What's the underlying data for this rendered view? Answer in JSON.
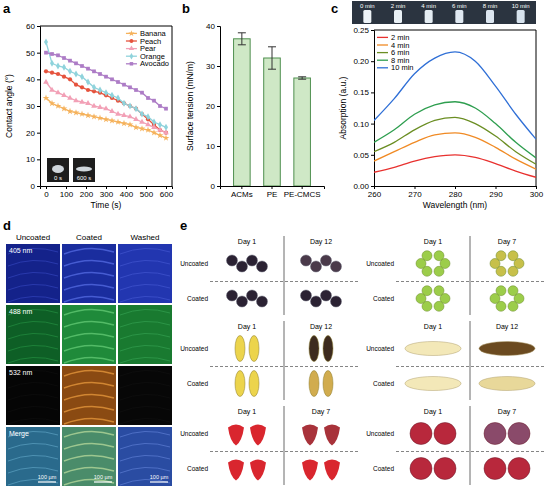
{
  "panel_labels": [
    "a",
    "b",
    "c",
    "d",
    "e"
  ],
  "chart_data": [
    {
      "type": "line",
      "x_label": "Time (s)",
      "y_label": "Contact angle (°)",
      "x": [
        0,
        30,
        60,
        90,
        120,
        150,
        180,
        210,
        240,
        270,
        300,
        330,
        360,
        390,
        420,
        450,
        480,
        510,
        540,
        570,
        600
      ],
      "xlim": [
        -30,
        630
      ],
      "xticks": [
        0,
        100,
        200,
        300,
        400,
        500,
        600
      ],
      "ylim": [
        0,
        60
      ],
      "yticks": [
        0,
        10,
        20,
        30,
        40,
        50,
        60
      ],
      "grid": false,
      "legend": "upper right",
      "annotations": [
        "0 s",
        "600 s"
      ],
      "series": [
        {
          "name": "Banana",
          "color": "#f5b25c",
          "marker": "star",
          "values": [
            33,
            31,
            30,
            29,
            28,
            27.5,
            27,
            26.5,
            26,
            25.5,
            25,
            24.5,
            24,
            23.5,
            23,
            22,
            21.5,
            21,
            20,
            19,
            18
          ]
        },
        {
          "name": "Peach",
          "color": "#e5533d",
          "marker": "circle",
          "values": [
            43,
            42.5,
            42,
            41,
            40,
            38,
            37,
            36,
            35.5,
            35,
            34,
            33,
            32,
            31,
            30,
            29,
            27,
            25,
            23,
            21,
            20
          ]
        },
        {
          "name": "Pear",
          "color": "#f2a0b6",
          "marker": "triangle",
          "values": [
            39,
            36,
            35,
            34,
            33,
            32,
            31.5,
            31,
            30,
            29.5,
            29,
            28,
            27,
            26.5,
            26,
            25,
            24,
            23,
            22,
            21,
            20
          ]
        },
        {
          "name": "Orange",
          "color": "#8fd3dc",
          "marker": "diamond",
          "values": [
            54,
            46,
            45,
            44.5,
            43,
            42,
            41,
            39,
            37,
            36,
            35,
            34,
            33,
            31,
            30,
            29,
            27,
            26,
            24,
            23,
            22
          ]
        },
        {
          "name": "Avocado",
          "color": "#ad7cc6",
          "marker": "square",
          "values": [
            50,
            49.5,
            49,
            48,
            47,
            46,
            45,
            44,
            43,
            42,
            41,
            40,
            39,
            38,
            37,
            36,
            35,
            33,
            32,
            30,
            29
          ]
        }
      ]
    },
    {
      "type": "bar",
      "y_label": "Surface tension (mN/m)",
      "categories": [
        "ACMs",
        "PE",
        "PE-CMCS"
      ],
      "values": [
        36.8,
        32.0,
        27.0
      ],
      "errors": [
        1.5,
        2.8,
        0.3
      ],
      "color": "#cfe8c6",
      "ylim": [
        0,
        40
      ],
      "yticks": [
        0,
        10,
        20,
        30,
        40
      ],
      "grid": false
    },
    {
      "type": "line",
      "x_label": "Wavelength (nm)",
      "y_label": "Absorption (a.u.)",
      "x": [
        260,
        265,
        270,
        275,
        280,
        285,
        290,
        295,
        300
      ],
      "xlim": [
        260,
        300
      ],
      "xticks": [
        260,
        270,
        280,
        290,
        300
      ],
      "ylim": [
        0,
        0.25
      ],
      "yticks": [
        {
          "value": 0,
          "label": "0.00"
        },
        0.05,
        {
          "value": 0.1,
          "label": "0.10"
        },
        0.15,
        {
          "value": 0.2,
          "label": "0.20"
        },
        0.25
      ],
      "grid": false,
      "legend": "upper left",
      "annotations": [
        "0 min",
        "2 min",
        "4 min",
        "6 min",
        "8 min",
        "10 min"
      ],
      "series": [
        {
          "name": "2 min",
          "color": "#e8312f",
          "values": [
            0.022,
            0.03,
            0.04,
            0.047,
            0.05,
            0.046,
            0.036,
            0.024,
            0.014
          ]
        },
        {
          "name": "4 min",
          "color": "#f08a24",
          "values": [
            0.04,
            0.055,
            0.07,
            0.082,
            0.085,
            0.078,
            0.062,
            0.043,
            0.027
          ]
        },
        {
          "name": "6 min",
          "color": "#6b8e23",
          "values": [
            0.055,
            0.07,
            0.09,
            0.105,
            0.11,
            0.1,
            0.08,
            0.055,
            0.035
          ]
        },
        {
          "name": "8 min",
          "color": "#2e9e4f",
          "values": [
            0.07,
            0.09,
            0.115,
            0.13,
            0.135,
            0.125,
            0.1,
            0.07,
            0.045
          ]
        },
        {
          "name": "10 min",
          "color": "#2f6fd6",
          "values": [
            0.105,
            0.14,
            0.18,
            0.205,
            0.215,
            0.2,
            0.16,
            0.115,
            0.075
          ]
        }
      ]
    }
  ],
  "micrographs": {
    "columns": [
      "Uncoated",
      "Coated",
      "Washed"
    ],
    "rows": [
      "405 nm",
      "488 nm",
      "532 nm",
      "Merge"
    ],
    "scale_bar": "100 µm"
  },
  "photos": {
    "groups": [
      {
        "rows": [
          "Uncoated",
          "Coated"
        ],
        "days": [
          "Day 1",
          "Day 12"
        ]
      },
      {
        "rows": [
          "Uncoated",
          "Coated"
        ],
        "days": [
          "Day 1",
          "Day 7"
        ]
      },
      {
        "rows": [
          "Uncoated",
          "Coated"
        ],
        "days": [
          "Day 1",
          "Day 12"
        ]
      },
      {
        "rows": [
          "Uncoated",
          "Coated"
        ],
        "days": [
          "Day 1",
          "Day 12"
        ]
      },
      {
        "rows": [
          "Uncoated",
          "Coated"
        ],
        "days": [
          "Day 1",
          "Day 7"
        ]
      },
      {
        "rows": [
          "Uncoated",
          "Coated"
        ],
        "days": [
          "Day 1",
          "Day 7"
        ]
      }
    ]
  }
}
